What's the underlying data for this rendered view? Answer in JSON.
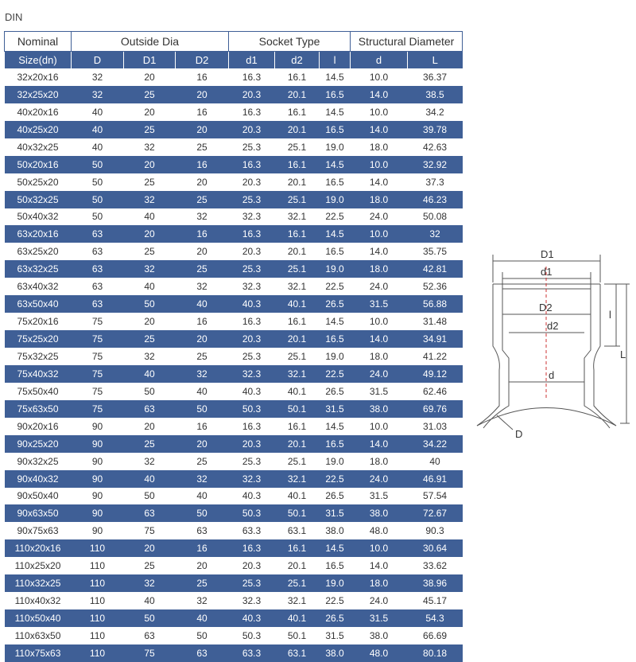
{
  "title": "DIN",
  "header_groups": [
    "Nominal",
    "Outside Dia",
    "Socket Type",
    "Structural Diameter"
  ],
  "columns": [
    "Size(dn)",
    "D",
    "D1",
    "D2",
    "d1",
    "d2",
    "l",
    "d",
    "L"
  ],
  "rows": [
    [
      "32x20x16",
      "32",
      "20",
      "16",
      "16.3",
      "16.1",
      "14.5",
      "10.0",
      "36.37"
    ],
    [
      "32x25x20",
      "32",
      "25",
      "20",
      "20.3",
      "20.1",
      "16.5",
      "14.0",
      "38.5"
    ],
    [
      "40x20x16",
      "40",
      "20",
      "16",
      "16.3",
      "16.1",
      "14.5",
      "10.0",
      "34.2"
    ],
    [
      "40x25x20",
      "40",
      "25",
      "20",
      "20.3",
      "20.1",
      "16.5",
      "14.0",
      "39.78"
    ],
    [
      "40x32x25",
      "40",
      "32",
      "25",
      "25.3",
      "25.1",
      "19.0",
      "18.0",
      "42.63"
    ],
    [
      "50x20x16",
      "50",
      "20",
      "16",
      "16.3",
      "16.1",
      "14.5",
      "10.0",
      "32.92"
    ],
    [
      "50x25x20",
      "50",
      "25",
      "20",
      "20.3",
      "20.1",
      "16.5",
      "14.0",
      "37.3"
    ],
    [
      "50x32x25",
      "50",
      "32",
      "25",
      "25.3",
      "25.1",
      "19.0",
      "18.0",
      "46.23"
    ],
    [
      "50x40x32",
      "50",
      "40",
      "32",
      "32.3",
      "32.1",
      "22.5",
      "24.0",
      "50.08"
    ],
    [
      "63x20x16",
      "63",
      "20",
      "16",
      "16.3",
      "16.1",
      "14.5",
      "10.0",
      "32"
    ],
    [
      "63x25x20",
      "63",
      "25",
      "20",
      "20.3",
      "20.1",
      "16.5",
      "14.0",
      "35.75"
    ],
    [
      "63x32x25",
      "63",
      "32",
      "25",
      "25.3",
      "25.1",
      "19.0",
      "18.0",
      "42.81"
    ],
    [
      "63x40x32",
      "63",
      "40",
      "32",
      "32.3",
      "32.1",
      "22.5",
      "24.0",
      "52.36"
    ],
    [
      "63x50x40",
      "63",
      "50",
      "40",
      "40.3",
      "40.1",
      "26.5",
      "31.5",
      "56.88"
    ],
    [
      "75x20x16",
      "75",
      "20",
      "16",
      "16.3",
      "16.1",
      "14.5",
      "10.0",
      "31.48"
    ],
    [
      "75x25x20",
      "75",
      "25",
      "20",
      "20.3",
      "20.1",
      "16.5",
      "14.0",
      "34.91"
    ],
    [
      "75x32x25",
      "75",
      "32",
      "25",
      "25.3",
      "25.1",
      "19.0",
      "18.0",
      "41.22"
    ],
    [
      "75x40x32",
      "75",
      "40",
      "32",
      "32.3",
      "32.1",
      "22.5",
      "24.0",
      "49.12"
    ],
    [
      "75x50x40",
      "75",
      "50",
      "40",
      "40.3",
      "40.1",
      "26.5",
      "31.5",
      "62.46"
    ],
    [
      "75x63x50",
      "75",
      "63",
      "50",
      "50.3",
      "50.1",
      "31.5",
      "38.0",
      "69.76"
    ],
    [
      "90x20x16",
      "90",
      "20",
      "16",
      "16.3",
      "16.1",
      "14.5",
      "10.0",
      "31.03"
    ],
    [
      "90x25x20",
      "90",
      "25",
      "20",
      "20.3",
      "20.1",
      "16.5",
      "14.0",
      "34.22"
    ],
    [
      "90x32x25",
      "90",
      "32",
      "25",
      "25.3",
      "25.1",
      "19.0",
      "18.0",
      "40"
    ],
    [
      "90x40x32",
      "90",
      "40",
      "32",
      "32.3",
      "32.1",
      "22.5",
      "24.0",
      "46.91"
    ],
    [
      "90x50x40",
      "90",
      "50",
      "40",
      "40.3",
      "40.1",
      "26.5",
      "31.5",
      "57.54"
    ],
    [
      "90x63x50",
      "90",
      "63",
      "50",
      "50.3",
      "50.1",
      "31.5",
      "38.0",
      "72.67"
    ],
    [
      "90x75x63",
      "90",
      "75",
      "63",
      "63.3",
      "63.1",
      "38.0",
      "48.0",
      "90.3"
    ],
    [
      "110x20x16",
      "110",
      "20",
      "16",
      "16.3",
      "16.1",
      "14.5",
      "10.0",
      "30.64"
    ],
    [
      "110x25x20",
      "110",
      "25",
      "20",
      "20.3",
      "20.1",
      "16.5",
      "14.0",
      "33.62"
    ],
    [
      "110x32x25",
      "110",
      "32",
      "25",
      "25.3",
      "25.1",
      "19.0",
      "18.0",
      "38.96"
    ],
    [
      "110x40x32",
      "110",
      "40",
      "32",
      "32.3",
      "32.1",
      "22.5",
      "24.0",
      "45.17"
    ],
    [
      "110x50x40",
      "110",
      "50",
      "40",
      "40.3",
      "40.1",
      "26.5",
      "31.5",
      "54.3"
    ],
    [
      "110x63x50",
      "110",
      "63",
      "50",
      "50.3",
      "50.1",
      "31.5",
      "38.0",
      "66.69"
    ],
    [
      "110x75x63",
      "110",
      "75",
      "63",
      "63.3",
      "63.1",
      "38.0",
      "48.0",
      "80.18"
    ]
  ],
  "diagram": {
    "labels": {
      "D1": "D1",
      "d1": "d1",
      "D2": "D2",
      "d2": "d2",
      "d": "d",
      "D": "D",
      "l": "l",
      "L": "L"
    }
  },
  "colors": {
    "band": "#3f5f96",
    "text": "#333333"
  }
}
